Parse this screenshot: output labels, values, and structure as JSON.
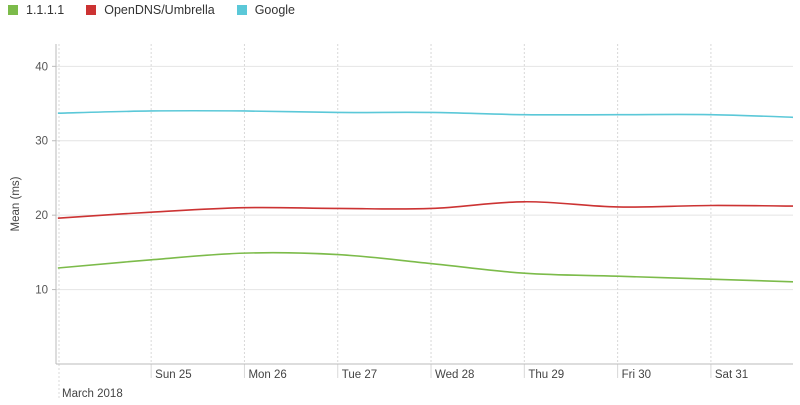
{
  "chart_data": {
    "type": "line",
    "title": "",
    "xlabel": "",
    "ylabel": "Mean (ms)",
    "x_month_label": "March 2018",
    "x": [
      "2018-03-24",
      "2018-03-25",
      "2018-03-26",
      "2018-03-27",
      "2018-03-28",
      "2018-03-29",
      "2018-03-30",
      "2018-03-31",
      "2018-04-01"
    ],
    "x_ticks": [
      {
        "date": "2018-03-25",
        "label": "Sun 25"
      },
      {
        "date": "2018-03-26",
        "label": "Mon 26"
      },
      {
        "date": "2018-03-27",
        "label": "Tue 27"
      },
      {
        "date": "2018-03-28",
        "label": "Wed 28"
      },
      {
        "date": "2018-03-29",
        "label": "Thu 29"
      },
      {
        "date": "2018-03-30",
        "label": "Fri 30"
      },
      {
        "date": "2018-03-31",
        "label": "Sat 31"
      }
    ],
    "ylim": [
      0,
      43
    ],
    "yticks": [
      10,
      20,
      30,
      40
    ],
    "grid": true,
    "legend_position": "top-left",
    "series": [
      {
        "name": "1.1.1.1",
        "color": "#7cbb4a",
        "values": [
          12.9,
          14.0,
          14.9,
          14.7,
          13.5,
          12.2,
          11.8,
          11.4,
          11.0
        ]
      },
      {
        "name": "OpenDNS/Umbrella",
        "color": "#cc3333",
        "values": [
          19.6,
          20.4,
          21.0,
          20.9,
          20.9,
          21.8,
          21.1,
          21.3,
          21.2
        ]
      },
      {
        "name": "Google",
        "color": "#5bc8d8",
        "values": [
          33.7,
          34.0,
          34.0,
          33.8,
          33.8,
          33.5,
          33.5,
          33.5,
          33.1
        ]
      }
    ]
  }
}
